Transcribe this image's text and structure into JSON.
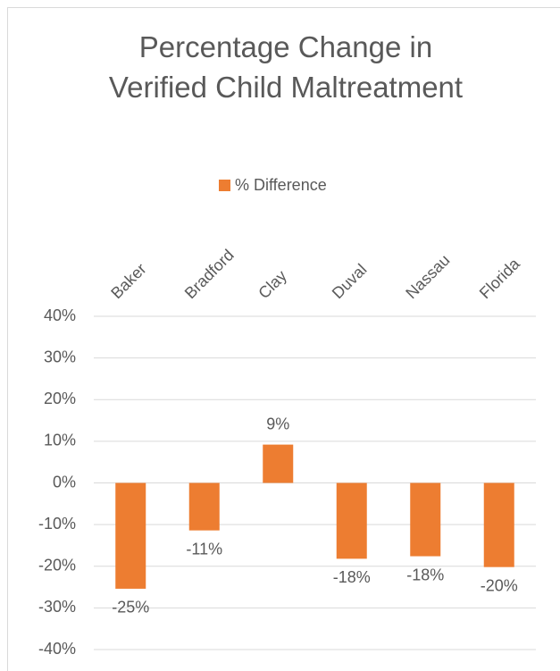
{
  "chart_data": {
    "type": "bar",
    "title": "Percentage Change in Verified Child Maltreatment",
    "categories": [
      "Baker",
      "Bradford",
      "Clay",
      "Duval",
      "Nassau",
      "Florida"
    ],
    "series": [
      {
        "name": "% Difference",
        "color": "#ed7d31",
        "values": [
          -25.4,
          -11.4,
          9.2,
          -18.2,
          -17.6,
          -20.2
        ],
        "value_labels": [
          "-25%",
          "-11%",
          "9%",
          "-18%",
          "-18%",
          "-20%"
        ]
      }
    ],
    "ylim": [
      -40,
      40
    ],
    "yticks": [
      {
        "value": -40,
        "label": "-40%"
      },
      {
        "value": -30,
        "label": "-30%"
      },
      {
        "value": -20,
        "label": "-20%"
      },
      {
        "value": -10,
        "label": "-10%"
      },
      {
        "value": 0,
        "label": "0%"
      },
      {
        "value": 10,
        "label": "10%"
      },
      {
        "value": 20,
        "label": "20%"
      },
      {
        "value": 30,
        "label": "30%"
      },
      {
        "value": 40,
        "label": "40%"
      }
    ],
    "grid": true,
    "legend": "top"
  }
}
